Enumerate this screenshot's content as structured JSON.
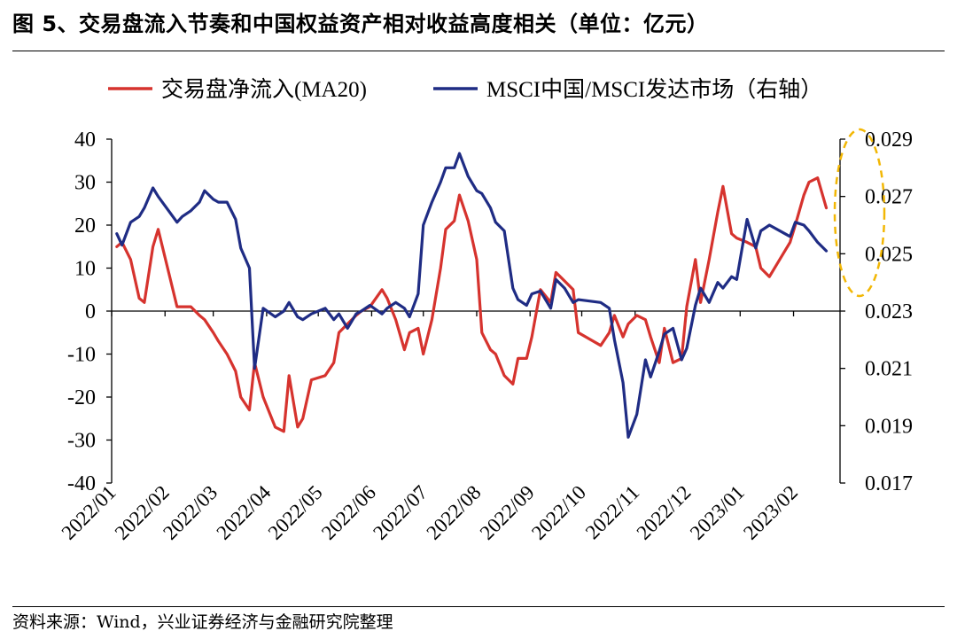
{
  "figure": {
    "title": "图 5、交易盘流入节奏和中国权益资产相对收益高度相关（单位：亿元）",
    "source": "资料来源：Wind，兴业证券经济与金融研究院整理"
  },
  "chart_data": {
    "type": "line",
    "legend_position": "top",
    "grid": false,
    "x_ticks": [
      "2022/01",
      "2022/02",
      "2022/03",
      "2022/04",
      "2022/05",
      "2022/06",
      "2022/07",
      "2022/08",
      "2022/09",
      "2022/10",
      "2022/11",
      "2022/12",
      "2023/01",
      "2023/02"
    ],
    "y_left": {
      "ticks": [
        "40",
        "30",
        "20",
        "10",
        "0",
        "-10",
        "-20",
        "-30",
        "-40"
      ],
      "range": [
        -40,
        40
      ]
    },
    "y_right": {
      "ticks": [
        "0.029",
        "0.027",
        "0.025",
        "0.023",
        "0.021",
        "0.019",
        "0.017"
      ],
      "range": [
        0.017,
        0.029
      ]
    },
    "highlight": {
      "type": "dashed-ellipse",
      "color": "#F2B705",
      "target": "2023/02 latest values"
    },
    "series": [
      {
        "name": "交易盘净流入(MA20)",
        "color": "#D6332E",
        "axis": "left",
        "values": [
          15,
          16,
          12,
          3,
          2,
          15,
          19,
          1,
          1,
          1,
          -1,
          -2,
          -5,
          -7,
          -10,
          -14,
          -20,
          -23,
          -12,
          -20,
          -27,
          -28,
          -15,
          -27,
          -25,
          -16,
          -15,
          -12,
          -5,
          -3,
          -1,
          0,
          1,
          5,
          3,
          -2,
          -9,
          -5,
          -4,
          -10,
          -2,
          10,
          19,
          21,
          27,
          21,
          12,
          -5,
          -9,
          -10,
          -15,
          -17,
          -11,
          -11,
          -6,
          5,
          2,
          9,
          7,
          5,
          -5,
          -8,
          -5,
          -1,
          -6,
          -3,
          -1,
          -2,
          -6,
          -12,
          -4,
          -12,
          -11,
          1,
          12,
          2,
          12,
          23,
          29,
          18,
          17,
          16,
          15,
          10,
          8,
          16,
          20,
          27,
          30,
          31,
          24
        ],
        "dates": [
          "2022-01-04",
          "2022-01-07",
          "2022-01-12",
          "2022-01-17",
          "2022-01-20",
          "2022-01-25",
          "2022-01-28",
          "2022-02-08",
          "2022-02-11",
          "2022-02-16",
          "2022-02-21",
          "2022-02-24",
          "2022-03-01",
          "2022-03-04",
          "2022-03-09",
          "2022-03-14",
          "2022-03-17",
          "2022-03-22",
          "2022-03-25",
          "2022-03-30",
          "2022-04-06",
          "2022-04-11",
          "2022-04-14",
          "2022-04-19",
          "2022-04-22",
          "2022-04-27",
          "2022-05-05",
          "2022-05-10",
          "2022-05-13",
          "2022-05-18",
          "2022-05-23",
          "2022-05-26",
          "2022-05-31",
          "2022-06-07",
          "2022-06-10",
          "2022-06-15",
          "2022-06-20",
          "2022-06-23",
          "2022-06-28",
          "2022-07-01",
          "2022-07-06",
          "2022-07-11",
          "2022-07-14",
          "2022-07-19",
          "2022-07-22",
          "2022-07-27",
          "2022-08-01",
          "2022-08-04",
          "2022-08-09",
          "2022-08-12",
          "2022-08-17",
          "2022-08-22",
          "2022-08-25",
          "2022-08-30",
          "2022-09-02",
          "2022-09-07",
          "2022-09-13",
          "2022-09-16",
          "2022-09-21",
          "2022-09-26",
          "2022-09-29",
          "2022-10-12",
          "2022-10-17",
          "2022-10-20",
          "2022-10-25",
          "2022-10-28",
          "2022-11-02",
          "2022-11-07",
          "2022-11-10",
          "2022-11-15",
          "2022-11-18",
          "2022-11-23",
          "2022-11-28",
          "2022-12-01",
          "2022-12-06",
          "2022-12-09",
          "2022-12-14",
          "2022-12-19",
          "2022-12-22",
          "2022-12-27",
          "2022-12-30",
          "2023-01-05",
          "2023-01-10",
          "2023-01-13",
          "2023-01-18",
          "2023-01-30",
          "2023-02-02",
          "2023-02-07",
          "2023-02-10",
          "2023-02-15",
          "2023-02-20"
        ]
      },
      {
        "name": "MSCI中国/MSCI发达市场（右轴）",
        "color": "#1F2C84",
        "axis": "right",
        "values": [
          0.0257,
          0.0253,
          0.0261,
          0.0263,
          0.0266,
          0.0273,
          0.027,
          0.0261,
          0.0263,
          0.0265,
          0.0268,
          0.0272,
          0.0269,
          0.0268,
          0.0268,
          0.0262,
          0.0252,
          0.0245,
          0.021,
          0.0231,
          0.0228,
          0.023,
          0.0233,
          0.0228,
          0.0227,
          0.0229,
          0.0231,
          0.0227,
          0.0229,
          0.0224,
          0.0229,
          0.023,
          0.0232,
          0.0229,
          0.0231,
          0.0233,
          0.0231,
          0.0228,
          0.0236,
          0.026,
          0.0268,
          0.0275,
          0.028,
          0.028,
          0.0285,
          0.0277,
          0.0272,
          0.0271,
          0.0266,
          0.0261,
          0.0258,
          0.0238,
          0.0234,
          0.0232,
          0.0236,
          0.0237,
          0.0231,
          0.0241,
          0.0238,
          0.0233,
          0.0234,
          0.0233,
          0.0231,
          0.022,
          0.0205,
          0.0186,
          0.0194,
          0.0213,
          0.0207,
          0.0216,
          0.0222,
          0.0224,
          0.0213,
          0.0217,
          0.0232,
          0.0238,
          0.0233,
          0.024,
          0.0238,
          0.0242,
          0.0241,
          0.0262,
          0.0252,
          0.0258,
          0.026,
          0.0256,
          0.0261,
          0.026,
          0.0258,
          0.0254,
          0.0251
        ],
        "dates": [
          "2022-01-04",
          "2022-01-07",
          "2022-01-12",
          "2022-01-17",
          "2022-01-20",
          "2022-01-25",
          "2022-01-28",
          "2022-02-08",
          "2022-02-11",
          "2022-02-16",
          "2022-02-21",
          "2022-02-24",
          "2022-03-01",
          "2022-03-04",
          "2022-03-09",
          "2022-03-14",
          "2022-03-17",
          "2022-03-22",
          "2022-03-25",
          "2022-03-30",
          "2022-04-06",
          "2022-04-11",
          "2022-04-14",
          "2022-04-19",
          "2022-04-22",
          "2022-04-27",
          "2022-05-05",
          "2022-05-10",
          "2022-05-13",
          "2022-05-18",
          "2022-05-23",
          "2022-05-26",
          "2022-05-31",
          "2022-06-07",
          "2022-06-10",
          "2022-06-15",
          "2022-06-20",
          "2022-06-23",
          "2022-06-28",
          "2022-07-01",
          "2022-07-06",
          "2022-07-11",
          "2022-07-14",
          "2022-07-19",
          "2022-07-22",
          "2022-07-27",
          "2022-08-01",
          "2022-08-04",
          "2022-08-09",
          "2022-08-12",
          "2022-08-17",
          "2022-08-22",
          "2022-08-25",
          "2022-08-30",
          "2022-09-02",
          "2022-09-07",
          "2022-09-13",
          "2022-09-16",
          "2022-09-21",
          "2022-09-26",
          "2022-09-29",
          "2022-10-12",
          "2022-10-17",
          "2022-10-20",
          "2022-10-25",
          "2022-10-28",
          "2022-11-02",
          "2022-11-07",
          "2022-11-10",
          "2022-11-15",
          "2022-11-18",
          "2022-11-23",
          "2022-11-28",
          "2022-12-01",
          "2022-12-06",
          "2022-12-09",
          "2022-12-14",
          "2022-12-19",
          "2022-12-22",
          "2022-12-27",
          "2022-12-30",
          "2023-01-05",
          "2023-01-10",
          "2023-01-13",
          "2023-01-18",
          "2023-01-30",
          "2023-02-02",
          "2023-02-07",
          "2023-02-10",
          "2023-02-15",
          "2023-02-20"
        ]
      }
    ]
  }
}
